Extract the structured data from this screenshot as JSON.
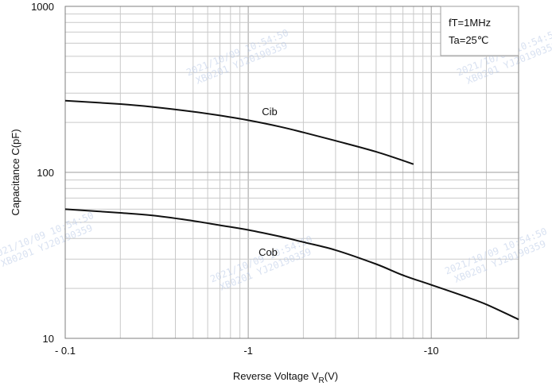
{
  "chart_data": {
    "type": "line",
    "x_scale": "log",
    "y_scale": "log",
    "xlim": [
      0.1,
      30
    ],
    "ylim": [
      10,
      1000
    ],
    "x_ticks": [
      {
        "value": 0.1,
        "label": "- 0.1"
      },
      {
        "value": 1,
        "label": "-1"
      },
      {
        "value": 10,
        "label": "-10"
      }
    ],
    "y_ticks": [
      {
        "value": 10,
        "label": "10"
      },
      {
        "value": 100,
        "label": "100"
      },
      {
        "value": 1000,
        "label": "1000"
      }
    ],
    "xlabel_main": "Reverse Voltage   V",
    "xlabel_sub": "R",
    "xlabel_tail": "(V)",
    "ylabel": "Capacitance   C(pF)",
    "grid": true,
    "conditions": [
      "fT=1MHz",
      "Ta=25℃"
    ],
    "series": [
      {
        "name": "Cib",
        "x": [
          0.1,
          0.2,
          0.3,
          0.5,
          0.7,
          1,
          1.5,
          2,
          3,
          5,
          8
        ],
        "y": [
          270,
          258,
          248,
          232,
          220,
          206,
          188,
          174,
          155,
          133,
          112
        ]
      },
      {
        "name": "Cob",
        "x": [
          0.1,
          0.2,
          0.3,
          0.5,
          0.7,
          1,
          1.5,
          2,
          3,
          5,
          7,
          10,
          15,
          20,
          30
        ],
        "y": [
          60,
          57,
          55,
          51,
          48,
          45,
          41,
          38,
          34,
          28,
          24,
          21,
          18,
          16,
          13
        ]
      }
    ]
  },
  "watermarks": [
    "2021/10/09 10:54:50",
    "XB0201 YJ20190359"
  ]
}
